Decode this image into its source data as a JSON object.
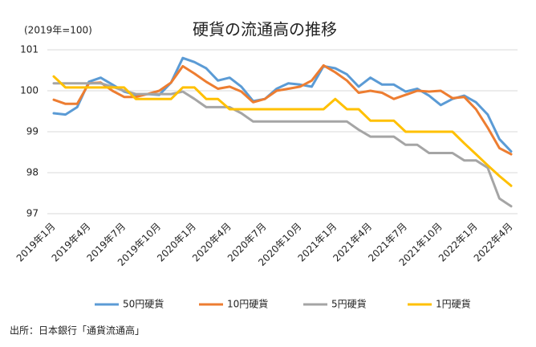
{
  "chart_data": {
    "type": "line",
    "title": "硬貨の流通高の推移",
    "subtitle": "(2019年=100)",
    "source": "出所：日本銀行「通貨流通高」",
    "categories": [
      "2019年1月",
      null,
      null,
      "2019年4月",
      null,
      null,
      "2019年7月",
      null,
      null,
      "2019年10月",
      null,
      null,
      "2020年1月",
      null,
      null,
      "2020年4月",
      null,
      null,
      "2020年7月",
      null,
      null,
      "2020年10月",
      null,
      null,
      "2021年1月",
      null,
      null,
      "2021年4月",
      null,
      null,
      "2021年7月",
      null,
      null,
      "2021年10月",
      null,
      null,
      "2022年1月",
      null,
      null,
      "2022年4月"
    ],
    "series": [
      {
        "name": "50円硬貨",
        "color": "#5b9bd5",
        "values": [
          99.45,
          99.42,
          99.6,
          100.22,
          100.32,
          100.15,
          99.98,
          99.9,
          99.92,
          99.9,
          100.2,
          100.8,
          100.7,
          100.55,
          100.25,
          100.32,
          100.1,
          99.75,
          99.8,
          100.05,
          100.18,
          100.15,
          100.1,
          100.6,
          100.55,
          100.4,
          100.1,
          100.32,
          100.15,
          100.15,
          99.98,
          100.05,
          99.88,
          99.65,
          99.8,
          99.88,
          99.72,
          99.42,
          98.82,
          98.52
        ]
      },
      {
        "name": "10円硬貨",
        "color": "#ed7d31",
        "values": [
          99.78,
          99.68,
          99.68,
          100.18,
          100.2,
          100.0,
          99.85,
          99.85,
          99.92,
          100.0,
          100.2,
          100.6,
          100.42,
          100.22,
          100.05,
          100.1,
          99.98,
          99.72,
          99.8,
          100.0,
          100.05,
          100.1,
          100.25,
          100.62,
          100.45,
          100.25,
          99.95,
          100.0,
          99.95,
          99.8,
          99.9,
          100.0,
          99.98,
          100.0,
          99.82,
          99.85,
          99.55,
          99.1,
          98.6,
          98.45
        ]
      },
      {
        "name": "5円硬貨",
        "color": "#a5a5a5",
        "values": [
          100.18,
          100.18,
          100.18,
          100.18,
          100.18,
          100.1,
          100.0,
          99.92,
          99.92,
          99.92,
          99.92,
          99.98,
          99.8,
          99.6,
          99.6,
          99.6,
          99.45,
          99.25,
          99.25,
          99.25,
          99.25,
          99.25,
          99.25,
          99.25,
          99.25,
          99.25,
          99.05,
          98.88,
          98.88,
          98.88,
          98.68,
          98.68,
          98.48,
          98.48,
          98.48,
          98.3,
          98.3,
          98.12,
          97.37,
          97.18
        ]
      },
      {
        "name": "1円硬貨",
        "color": "#ffc000",
        "values": [
          100.35,
          100.08,
          100.08,
          100.08,
          100.08,
          100.08,
          100.08,
          99.8,
          99.8,
          99.8,
          99.8,
          100.08,
          100.08,
          99.8,
          99.8,
          99.55,
          99.55,
          99.55,
          99.55,
          99.55,
          99.55,
          99.55,
          99.55,
          99.55,
          99.8,
          99.55,
          99.55,
          99.27,
          99.27,
          99.27,
          99.0,
          99.0,
          99.0,
          99.0,
          99.0,
          98.72,
          98.45,
          98.18,
          97.92,
          97.68
        ]
      }
    ],
    "ylim": [
      97,
      101
    ],
    "yticks": [
      97,
      98,
      99,
      100,
      101
    ],
    "grid": true,
    "legend": "bottom"
  }
}
